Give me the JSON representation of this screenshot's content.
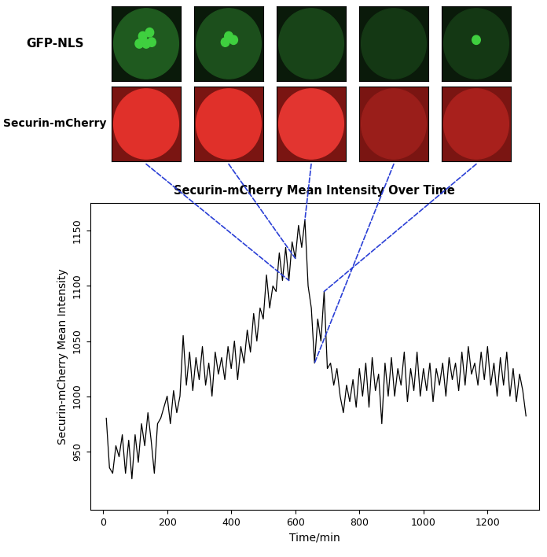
{
  "chart_data": {
    "type": "line",
    "title": "Securin-mCherry Mean Intensity Over Time",
    "x_label": "Time/min",
    "y_label": "Securin-mCherry Mean Intensity",
    "image_rows": [
      "GFP-NLS",
      "Securin-mCherry"
    ],
    "color": "#000000",
    "x": [
      10,
      20,
      30,
      40,
      50,
      60,
      70,
      80,
      90,
      100,
      110,
      120,
      130,
      140,
      150,
      160,
      170,
      180,
      190,
      200,
      210,
      220,
      230,
      240,
      250,
      260,
      270,
      280,
      290,
      300,
      310,
      320,
      330,
      340,
      350,
      360,
      370,
      380,
      390,
      400,
      410,
      420,
      430,
      440,
      450,
      460,
      470,
      480,
      490,
      500,
      510,
      520,
      530,
      540,
      550,
      560,
      570,
      580,
      590,
      600,
      610,
      620,
      630,
      640,
      650,
      660,
      670,
      680,
      690,
      700,
      710,
      720,
      730,
      740,
      750,
      760,
      770,
      780,
      790,
      800,
      810,
      820,
      830,
      840,
      850,
      860,
      870,
      880,
      890,
      900,
      910,
      920,
      930,
      940,
      950,
      960,
      970,
      980,
      990,
      1000,
      1010,
      1020,
      1030,
      1040,
      1050,
      1060,
      1070,
      1080,
      1090,
      1100,
      1110,
      1120,
      1130,
      1140,
      1150,
      1160,
      1170,
      1180,
      1190,
      1200,
      1210,
      1220,
      1230,
      1240,
      1250,
      1260,
      1270,
      1280,
      1290,
      1300,
      1310,
      1320
    ],
    "values": [
      980,
      935,
      930,
      955,
      945,
      965,
      930,
      960,
      925,
      965,
      940,
      975,
      955,
      985,
      960,
      930,
      975,
      980,
      990,
      1000,
      975,
      1005,
      985,
      1000,
      1055,
      1010,
      1040,
      1005,
      1035,
      1015,
      1045,
      1010,
      1030,
      1000,
      1040,
      1020,
      1035,
      1015,
      1045,
      1025,
      1050,
      1015,
      1045,
      1030,
      1060,
      1040,
      1075,
      1050,
      1080,
      1070,
      1110,
      1080,
      1100,
      1095,
      1130,
      1105,
      1135,
      1105,
      1140,
      1125,
      1155,
      1135,
      1160,
      1100,
      1080,
      1030,
      1070,
      1050,
      1095,
      1025,
      1030,
      1010,
      1025,
      1000,
      985,
      1010,
      995,
      1015,
      990,
      1025,
      1000,
      1030,
      990,
      1035,
      1005,
      1020,
      975,
      1030,
      1000,
      1035,
      1000,
      1025,
      1010,
      1040,
      995,
      1025,
      1005,
      1040,
      1000,
      1025,
      1005,
      1030,
      995,
      1025,
      1010,
      1030,
      1000,
      1035,
      1015,
      1030,
      1005,
      1040,
      1010,
      1045,
      1020,
      1030,
      1010,
      1040,
      1015,
      1045,
      1010,
      1030,
      1000,
      1035,
      1010,
      1040,
      1000,
      1025,
      995,
      1020,
      1005,
      982
    ],
    "frame_times": [
      580,
      600,
      630,
      660,
      690
    ],
    "xlim": [
      -40,
      1360
    ],
    "xticks": [
      0,
      200,
      400,
      600,
      800,
      1000,
      1200
    ],
    "ylim": [
      897,
      1175
    ],
    "yticks": [
      950,
      1000,
      1050,
      1100,
      1150
    ]
  }
}
